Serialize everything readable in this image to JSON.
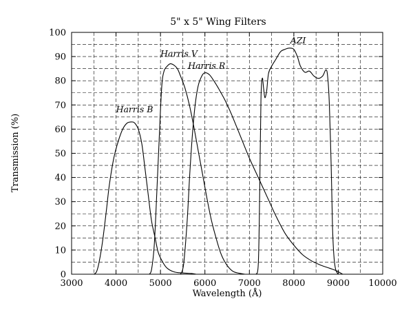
{
  "chart_data": {
    "type": "line",
    "title": "5\" x 5\" Wing Filters",
    "xlabel": "Wavelength (Å)",
    "ylabel": "Transmission (%)",
    "xlim": [
      3000,
      10000
    ],
    "ylim": [
      0,
      100
    ],
    "x_ticks": [
      3000,
      4000,
      5000,
      6000,
      7000,
      8000,
      9000,
      10000
    ],
    "y_ticks": [
      0,
      10,
      20,
      30,
      40,
      50,
      60,
      70,
      80,
      90,
      100
    ],
    "grid": true,
    "series": [
      {
        "name": "Harris B",
        "label_at": [
          4000,
          67
        ],
        "points": [
          [
            3500,
            0
          ],
          [
            3560,
            1
          ],
          [
            3620,
            5
          ],
          [
            3700,
            14
          ],
          [
            3780,
            26
          ],
          [
            3850,
            37
          ],
          [
            3950,
            48
          ],
          [
            4050,
            55
          ],
          [
            4150,
            60
          ],
          [
            4250,
            62.5
          ],
          [
            4350,
            63
          ],
          [
            4420,
            62.5
          ],
          [
            4500,
            60
          ],
          [
            4580,
            54
          ],
          [
            4650,
            44
          ],
          [
            4730,
            32
          ],
          [
            4800,
            22
          ],
          [
            4880,
            15
          ],
          [
            4950,
            9
          ],
          [
            5050,
            5
          ],
          [
            5150,
            2.5
          ],
          [
            5300,
            1
          ],
          [
            5500,
            0.5
          ],
          [
            5700,
            0.3
          ],
          [
            5800,
            0
          ]
        ]
      },
      {
        "name": "Harris V",
        "label_at": [
          5000,
          90
        ],
        "points": [
          [
            4750,
            0
          ],
          [
            4800,
            2
          ],
          [
            4860,
            12
          ],
          [
            4920,
            35
          ],
          [
            4980,
            60
          ],
          [
            5030,
            78
          ],
          [
            5080,
            84
          ],
          [
            5150,
            86
          ],
          [
            5220,
            87
          ],
          [
            5300,
            86.5
          ],
          [
            5380,
            85
          ],
          [
            5450,
            82
          ],
          [
            5550,
            77
          ],
          [
            5650,
            70
          ],
          [
            5750,
            61
          ],
          [
            5850,
            51
          ],
          [
            5950,
            41
          ],
          [
            6050,
            31
          ],
          [
            6150,
            22
          ],
          [
            6250,
            15
          ],
          [
            6350,
            9
          ],
          [
            6450,
            5
          ],
          [
            6550,
            2.5
          ],
          [
            6650,
            1
          ],
          [
            6800,
            0.3
          ],
          [
            6900,
            0
          ]
        ]
      },
      {
        "name": "Harris R",
        "label_at": [
          5620,
          85
        ],
        "points": [
          [
            5450,
            0
          ],
          [
            5520,
            4
          ],
          [
            5600,
            22
          ],
          [
            5660,
            42
          ],
          [
            5720,
            58
          ],
          [
            5780,
            70
          ],
          [
            5850,
            78
          ],
          [
            5930,
            82
          ],
          [
            6000,
            83.3
          ],
          [
            6100,
            82.5
          ],
          [
            6200,
            80
          ],
          [
            6300,
            77
          ],
          [
            6450,
            72
          ],
          [
            6600,
            66
          ],
          [
            6800,
            57
          ],
          [
            7000,
            48
          ],
          [
            7200,
            40
          ],
          [
            7400,
            32
          ],
          [
            7600,
            24
          ],
          [
            7800,
            17
          ],
          [
            8000,
            12
          ],
          [
            8200,
            8
          ],
          [
            8400,
            5.5
          ],
          [
            8600,
            3.8
          ],
          [
            8800,
            2.5
          ],
          [
            8950,
            1.5
          ],
          [
            9050,
            0.5
          ],
          [
            9100,
            0
          ]
        ]
      },
      {
        "name": "AZI",
        "label_at": [
          7920,
          95.5
        ],
        "points": [
          [
            7150,
            0
          ],
          [
            7200,
            4
          ],
          [
            7230,
            30
          ],
          [
            7260,
            72
          ],
          [
            7290,
            81
          ],
          [
            7320,
            77
          ],
          [
            7350,
            73
          ],
          [
            7390,
            76
          ],
          [
            7430,
            83
          ],
          [
            7500,
            86
          ],
          [
            7600,
            89
          ],
          [
            7700,
            92
          ],
          [
            7800,
            93
          ],
          [
            7900,
            93.5
          ],
          [
            8000,
            93
          ],
          [
            8080,
            90
          ],
          [
            8150,
            86
          ],
          [
            8250,
            83.5
          ],
          [
            8350,
            84
          ],
          [
            8450,
            82
          ],
          [
            8550,
            81
          ],
          [
            8650,
            82
          ],
          [
            8720,
            84.5
          ],
          [
            8760,
            82
          ],
          [
            8800,
            70
          ],
          [
            8840,
            45
          ],
          [
            8870,
            20
          ],
          [
            8900,
            8
          ],
          [
            8940,
            2
          ],
          [
            9000,
            0
          ]
        ]
      }
    ]
  }
}
